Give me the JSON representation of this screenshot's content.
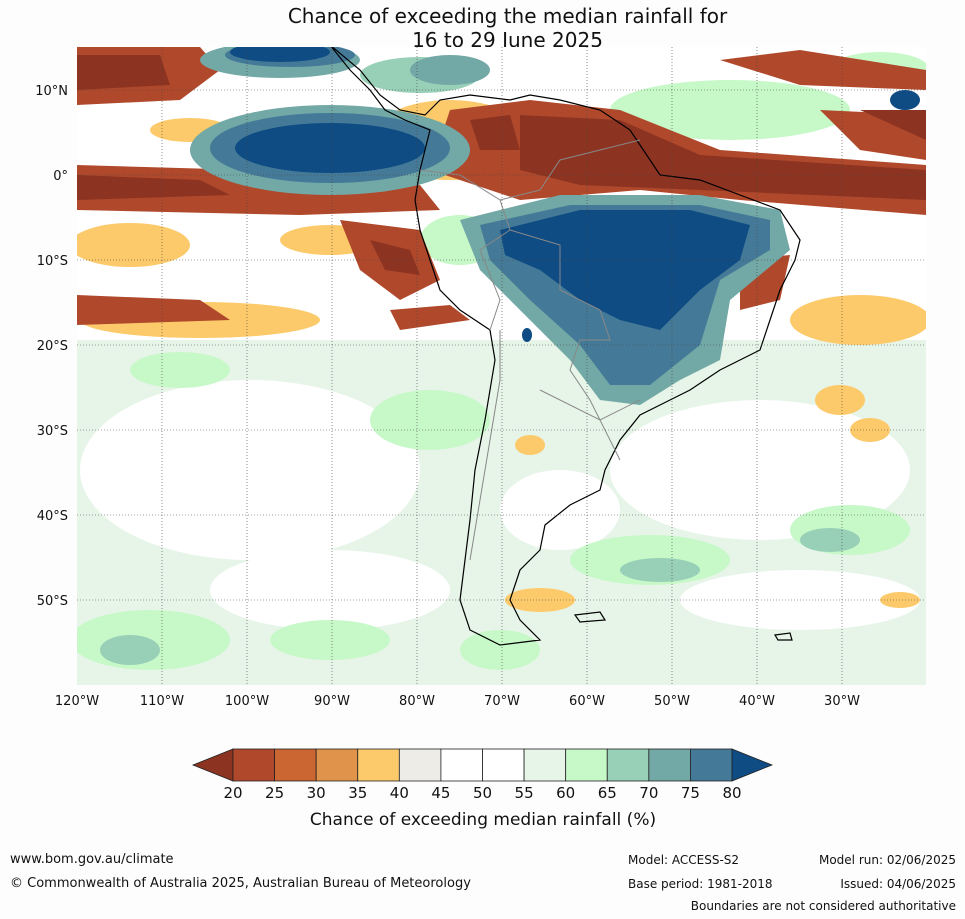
{
  "title": {
    "line1": "Chance of exceeding the median rainfall for",
    "line2": "16 to 29 June 2025"
  },
  "map": {
    "lon_ticks": [
      "120°W",
      "110°W",
      "100°W",
      "90°W",
      "80°W",
      "70°W",
      "60°W",
      "50°W",
      "40°W",
      "30°W"
    ],
    "lat_ticks": [
      "10°N",
      "0°",
      "10°S",
      "20°S",
      "30°S",
      "40°S",
      "50°S"
    ],
    "lon_range": [
      -120,
      -20
    ],
    "lat_range": [
      -60,
      15
    ]
  },
  "colorbar": {
    "title": "Chance of exceeding median rainfall (%)",
    "labels": [
      "20",
      "25",
      "30",
      "35",
      "40",
      "45",
      "50",
      "55",
      "60",
      "65",
      "70",
      "75",
      "80"
    ],
    "colors": [
      "#8c3421",
      "#b0482b",
      "#cb6632",
      "#e0944b",
      "#fcca6a",
      "#eeece6",
      "#ffffff",
      "#ffffff",
      "#e6f5e8",
      "#c7f8c8",
      "#98cfb7",
      "#72a8a5",
      "#447a98",
      "#0f4c84"
    ],
    "extend": "both"
  },
  "footer": {
    "url": "www.bom.gov.au/climate",
    "copyright": "© Commonwealth of Australia 2025, Australian Bureau of Meteorology",
    "model": "Model: ACCESS-S2",
    "base_period": "Base period: 1981-2018",
    "model_run": "Model run: 02/06/2025",
    "issued": "Issued: 04/06/2025",
    "boundaries": "Boundaries are not considered authoritative"
  }
}
